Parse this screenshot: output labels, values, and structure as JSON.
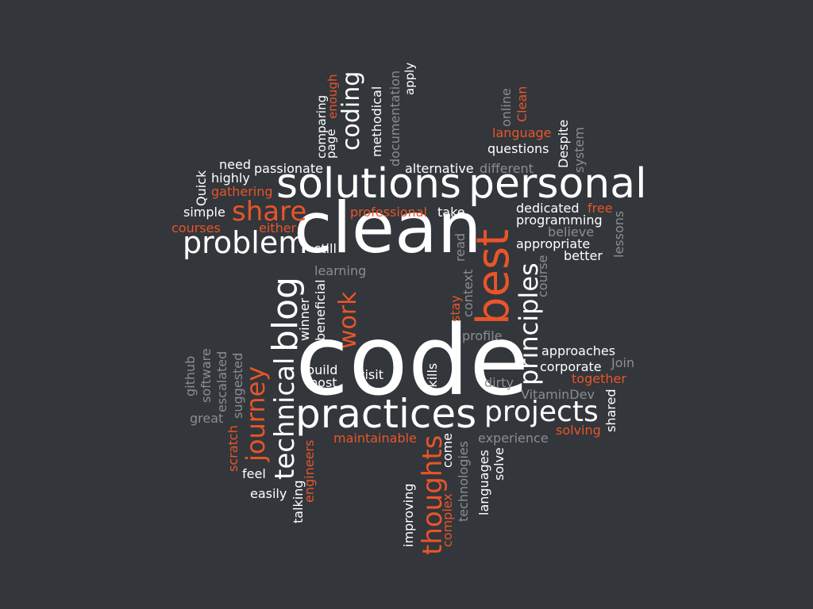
{
  "palette": {
    "background": "#33363b",
    "white": "#ffffff",
    "orange": "#e8552a",
    "gray": "#8a8d91"
  },
  "words": [
    {
      "id": "code",
      "text": "code",
      "tone": "white"
    },
    {
      "id": "clean",
      "text": "clean",
      "tone": "white"
    },
    {
      "id": "practices",
      "text": "practices",
      "tone": "white"
    },
    {
      "id": "solutions",
      "text": "solutions",
      "tone": "white"
    },
    {
      "id": "personal",
      "text": "personal",
      "tone": "white"
    },
    {
      "id": "best",
      "text": "best",
      "tone": "orange"
    },
    {
      "id": "blog",
      "text": "blog",
      "tone": "white"
    },
    {
      "id": "technical",
      "text": "technical",
      "tone": "white"
    },
    {
      "id": "projects",
      "text": "projects",
      "tone": "white"
    },
    {
      "id": "principles",
      "text": "principles",
      "tone": "white"
    },
    {
      "id": "problem",
      "text": "problem",
      "tone": "white"
    },
    {
      "id": "share",
      "text": "share",
      "tone": "orange"
    },
    {
      "id": "journey",
      "text": "journey",
      "tone": "orange"
    },
    {
      "id": "thoughts",
      "text": "thoughts",
      "tone": "orange"
    },
    {
      "id": "work",
      "text": "work",
      "tone": "orange"
    },
    {
      "id": "coding",
      "text": "coding",
      "tone": "white"
    },
    {
      "id": "methodical",
      "text": "methodical",
      "tone": "white"
    },
    {
      "id": "documentation",
      "text": "documentation",
      "tone": "gray"
    },
    {
      "id": "apply",
      "text": "apply",
      "tone": "white"
    },
    {
      "id": "enough",
      "text": "enough",
      "tone": "orange"
    },
    {
      "id": "page",
      "text": "page",
      "tone": "white"
    },
    {
      "id": "comparing",
      "text": "comparing",
      "tone": "white"
    },
    {
      "id": "need",
      "text": "need",
      "tone": "white"
    },
    {
      "id": "passionate",
      "text": "passionate",
      "tone": "white"
    },
    {
      "id": "alternative",
      "text": "alternative",
      "tone": "white"
    },
    {
      "id": "different",
      "text": "different",
      "tone": "gray"
    },
    {
      "id": "highly",
      "text": "highly",
      "tone": "white"
    },
    {
      "id": "quick",
      "text": "Quick",
      "tone": "white"
    },
    {
      "id": "gathering",
      "text": "gathering",
      "tone": "orange"
    },
    {
      "id": "simple",
      "text": "simple",
      "tone": "white"
    },
    {
      "id": "courses",
      "text": "courses",
      "tone": "orange"
    },
    {
      "id": "either",
      "text": "either",
      "tone": "orange"
    },
    {
      "id": "professional",
      "text": "professional",
      "tone": "orange"
    },
    {
      "id": "take",
      "text": "take",
      "tone": "white"
    },
    {
      "id": "still",
      "text": "still",
      "tone": "white"
    },
    {
      "id": "learning",
      "text": "learning",
      "tone": "gray"
    },
    {
      "id": "read",
      "text": "read",
      "tone": "gray"
    },
    {
      "id": "context",
      "text": "context",
      "tone": "gray"
    },
    {
      "id": "stay",
      "text": "stay",
      "tone": "orange"
    },
    {
      "id": "winner",
      "text": "winner",
      "tone": "white"
    },
    {
      "id": "beneficial",
      "text": "beneficial",
      "tone": "white"
    },
    {
      "id": "online",
      "text": "online",
      "tone": "gray"
    },
    {
      "id": "clean_small",
      "text": "Clean",
      "tone": "orange"
    },
    {
      "id": "language",
      "text": "language",
      "tone": "orange"
    },
    {
      "id": "despite",
      "text": "Despite",
      "tone": "white"
    },
    {
      "id": "system",
      "text": "system",
      "tone": "gray"
    },
    {
      "id": "questions",
      "text": "questions",
      "tone": "white"
    },
    {
      "id": "dedicated",
      "text": "dedicated",
      "tone": "white"
    },
    {
      "id": "free",
      "text": "free",
      "tone": "orange"
    },
    {
      "id": "programming",
      "text": "programming",
      "tone": "white"
    },
    {
      "id": "lessons",
      "text": "lessons",
      "tone": "gray"
    },
    {
      "id": "believe",
      "text": "believe",
      "tone": "gray"
    },
    {
      "id": "appropriate",
      "text": "appropriate",
      "tone": "white"
    },
    {
      "id": "better",
      "text": "better",
      "tone": "white"
    },
    {
      "id": "course",
      "text": "course",
      "tone": "gray"
    },
    {
      "id": "profile",
      "text": "profile",
      "tone": "gray"
    },
    {
      "id": "approaches",
      "text": "approaches",
      "tone": "white"
    },
    {
      "id": "corporate",
      "text": "corporate",
      "tone": "white"
    },
    {
      "id": "join",
      "text": "Join",
      "tone": "gray"
    },
    {
      "id": "together",
      "text": "together",
      "tone": "orange"
    },
    {
      "id": "dirty",
      "text": "dirty",
      "tone": "gray"
    },
    {
      "id": "vitamindev",
      "text": "VitaminDev",
      "tone": "gray"
    },
    {
      "id": "shared",
      "text": "shared",
      "tone": "white"
    },
    {
      "id": "solving",
      "text": "solving",
      "tone": "orange"
    },
    {
      "id": "experience",
      "text": "experience",
      "tone": "gray"
    },
    {
      "id": "build",
      "text": "build",
      "tone": "white"
    },
    {
      "id": "post",
      "text": "post",
      "tone": "white"
    },
    {
      "id": "visit",
      "text": "visit",
      "tone": "white"
    },
    {
      "id": "skills",
      "text": "skills",
      "tone": "white"
    },
    {
      "id": "github",
      "text": "github",
      "tone": "gray"
    },
    {
      "id": "software",
      "text": "software",
      "tone": "gray"
    },
    {
      "id": "escalated",
      "text": "escalated",
      "tone": "gray"
    },
    {
      "id": "suggested",
      "text": "suggested",
      "tone": "gray"
    },
    {
      "id": "great",
      "text": "great",
      "tone": "gray"
    },
    {
      "id": "scratch",
      "text": "scratch",
      "tone": "orange"
    },
    {
      "id": "maintainable",
      "text": "maintainable",
      "tone": "orange"
    },
    {
      "id": "come",
      "text": "come",
      "tone": "white"
    },
    {
      "id": "technologies",
      "text": "technologies",
      "tone": "gray"
    },
    {
      "id": "languages",
      "text": "languages",
      "tone": "white"
    },
    {
      "id": "solve",
      "text": "solve",
      "tone": "white"
    },
    {
      "id": "feel",
      "text": "feel",
      "tone": "white"
    },
    {
      "id": "easily",
      "text": "easily",
      "tone": "white"
    },
    {
      "id": "talking",
      "text": "talking",
      "tone": "white"
    },
    {
      "id": "engineers",
      "text": "engineers",
      "tone": "orange"
    },
    {
      "id": "improving",
      "text": "improving",
      "tone": "white"
    },
    {
      "id": "complex",
      "text": "complex",
      "tone": "orange"
    }
  ]
}
